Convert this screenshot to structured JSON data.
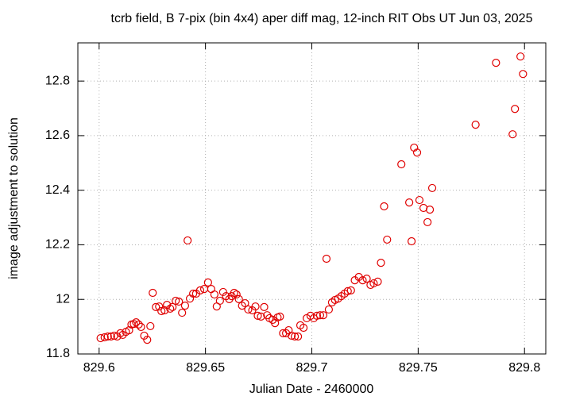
{
  "chart_data": {
    "type": "scatter",
    "title": "tcrb field, B 7-pix (bin 4x4) aper diff mag,  12-inch RIT Obs UT Jun 03, 2025",
    "x_label": "Julian Date - 2460000",
    "y_label": "image adjustment to solution",
    "color": "#e00000",
    "grid": true,
    "xlim": [
      829.59,
      829.81
    ],
    "ylim": [
      11.8,
      12.94
    ],
    "xticks": [
      829.6,
      829.65,
      829.7,
      829.75,
      829.8
    ],
    "yticks": [
      11.8,
      12,
      12.2,
      12.4,
      12.6,
      12.8
    ],
    "x": [
      829.6007,
      829.6026,
      829.6041,
      829.6056,
      829.6071,
      829.6085,
      829.61,
      829.6111,
      829.6126,
      829.6141,
      829.6152,
      829.6163,
      829.6174,
      829.6186,
      829.6197,
      829.6212,
      829.6226,
      829.6241,
      829.6252,
      829.6267,
      829.6282,
      829.6293,
      829.6308,
      829.6319,
      829.6334,
      829.6345,
      829.636,
      829.6375,
      829.639,
      829.6404,
      829.6416,
      829.6427,
      829.6442,
      829.6456,
      829.6475,
      829.6494,
      829.6512,
      829.6527,
      829.6542,
      829.6553,
      829.6568,
      829.6583,
      829.6597,
      829.6612,
      829.6623,
      829.6635,
      829.6646,
      829.6657,
      829.6672,
      829.6686,
      829.6701,
      829.672,
      829.6735,
      829.6746,
      829.6761,
      829.6776,
      829.679,
      829.6801,
      829.6816,
      829.6827,
      829.6839,
      829.685,
      829.6865,
      829.6879,
      829.6891,
      829.6905,
      829.692,
      829.6935,
      829.6946,
      829.6961,
      829.6976,
      829.6994,
      829.7009,
      829.7024,
      829.7039,
      829.7054,
      829.7069,
      829.708,
      829.7095,
      829.7109,
      829.7124,
      829.7139,
      829.7154,
      829.7169,
      829.7184,
      829.7202,
      829.7221,
      829.7239,
      829.7258,
      829.7276,
      829.7291,
      829.731,
      829.7325,
      829.734,
      829.7354,
      829.7421,
      829.7458,
      829.7469,
      829.7481,
      829.7495,
      829.7506,
      829.7525,
      829.7544,
      829.7555,
      829.7566,
      829.777,
      829.7866,
      829.7944,
      829.7955,
      829.7981,
      829.7993
    ],
    "values": [
      11.858,
      11.861,
      11.864,
      11.864,
      11.867,
      11.864,
      11.876,
      11.87,
      11.881,
      11.887,
      11.908,
      11.91,
      11.916,
      11.908,
      11.899,
      11.867,
      11.852,
      11.902,
      12.024,
      11.972,
      11.974,
      11.957,
      11.96,
      11.98,
      11.966,
      11.972,
      11.995,
      11.992,
      11.951,
      11.977,
      12.216,
      12.003,
      12.021,
      12.021,
      12.033,
      12.038,
      12.062,
      12.038,
      12.018,
      11.974,
      11.995,
      12.027,
      12.012,
      12.001,
      12.012,
      12.024,
      12.018,
      12.001,
      11.977,
      11.986,
      11.963,
      11.96,
      11.974,
      11.94,
      11.937,
      11.972,
      11.942,
      11.931,
      11.925,
      11.913,
      11.934,
      11.937,
      11.876,
      11.876,
      11.887,
      11.867,
      11.864,
      11.864,
      11.905,
      11.896,
      11.931,
      11.94,
      11.931,
      11.94,
      11.942,
      11.942,
      12.149,
      11.963,
      11.989,
      11.998,
      12.003,
      12.012,
      12.021,
      12.03,
      12.033,
      12.07,
      12.082,
      12.07,
      12.076,
      12.053,
      12.059,
      12.065,
      12.134,
      12.341,
      12.219,
      12.495,
      12.355,
      12.213,
      12.556,
      12.538,
      12.364,
      12.335,
      12.283,
      12.329,
      12.408,
      12.64,
      12.867,
      12.605,
      12.698,
      12.89,
      12.826
    ]
  }
}
